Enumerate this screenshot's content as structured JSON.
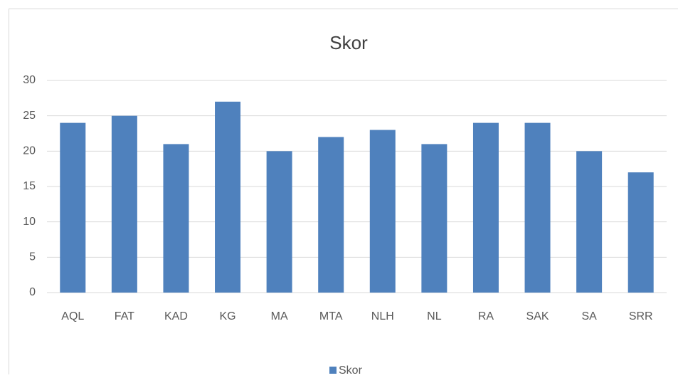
{
  "chart_data": {
    "type": "bar",
    "title": "Skor",
    "categories": [
      "AQL",
      "FAT",
      "KAD",
      "KG",
      "MA",
      "MTA",
      "NLH",
      "NL",
      "RA",
      "SAK",
      "SA",
      "SRR"
    ],
    "series": [
      {
        "name": "Skor",
        "color": "#4f81bd",
        "values": [
          24,
          25,
          21,
          27,
          20,
          22,
          23,
          21,
          24,
          24,
          20,
          17
        ]
      }
    ],
    "ylim": [
      0,
      30
    ],
    "yticks": [
      0,
      5,
      10,
      15,
      20,
      25,
      30
    ],
    "grid": true,
    "legend": "bottom"
  }
}
